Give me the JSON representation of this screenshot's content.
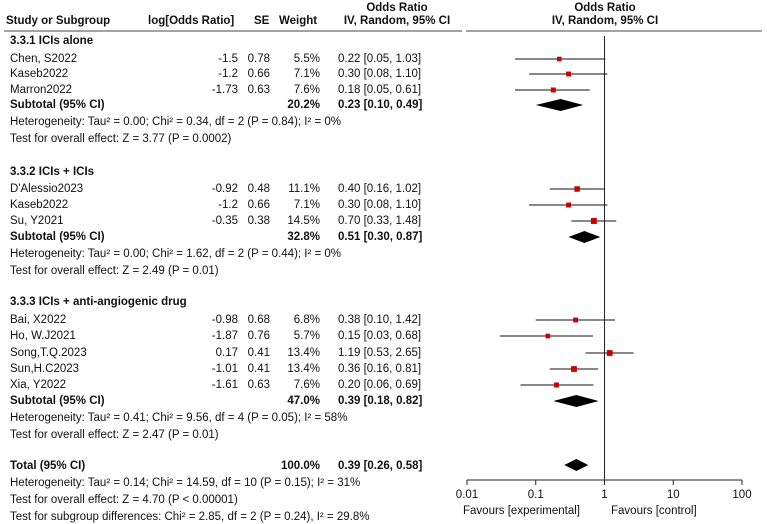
{
  "headers": {
    "study": "Study or Subgroup",
    "log_or": "log[Odds Ratio]",
    "se": "SE",
    "weight": "Weight",
    "or_title": "Odds Ratio",
    "or_method": "IV, Random, 95% CI",
    "plot_title": "Odds Ratio",
    "plot_method": "IV, Random, 95% CI"
  },
  "subgroups": [
    {
      "title": "3.3.1 ICIs alone",
      "studies": [
        {
          "name": "Chen, S2022",
          "log": "-1.5",
          "se": "0.78",
          "weight": "5.5%",
          "ci": "0.22 [0.05, 1.03]"
        },
        {
          "name": "Kaseb2022",
          "log": "-1.2",
          "se": "0.66",
          "weight": "7.1%",
          "ci": "0.30 [0.08, 1.10]"
        },
        {
          "name": "Marron2022",
          "log": "-1.73",
          "se": "0.63",
          "weight": "7.6%",
          "ci": "0.18 [0.05, 0.61]"
        }
      ],
      "subtotal_label": "Subtotal (95% CI)",
      "subtotal_weight": "20.2%",
      "subtotal_ci": "0.23 [0.10, 0.49]",
      "heterogeneity": "Heterogeneity: Tau² = 0.00; Chi² = 0.34, df = 2 (P = 0.84); I² = 0%",
      "overall": "Test for overall effect: Z = 3.77 (P = 0.0002)"
    },
    {
      "title": "3.3.2 ICIs + ICIs",
      "studies": [
        {
          "name": "D'Alessio2023",
          "log": "-0.92",
          "se": "0.48",
          "weight": "11.1%",
          "ci": "0.40 [0.16, 1.02]"
        },
        {
          "name": "Kaseb2022",
          "log": "-1.2",
          "se": "0.66",
          "weight": "7.1%",
          "ci": "0.30 [0.08, 1.10]"
        },
        {
          "name": "Su, Y2021",
          "log": "-0.35",
          "se": "0.38",
          "weight": "14.5%",
          "ci": "0.70 [0.33, 1.48]"
        }
      ],
      "subtotal_label": "Subtotal (95% CI)",
      "subtotal_weight": "32.8%",
      "subtotal_ci": "0.51 [0.30, 0.87]",
      "heterogeneity": "Heterogeneity: Tau² = 0.00; Chi² = 1.62, df = 2 (P = 0.44); I² = 0%",
      "overall": "Test for overall effect: Z = 2.49 (P = 0.01)"
    },
    {
      "title": "3.3.3 ICIs + anti-angiogenic drug",
      "studies": [
        {
          "name": "Bai, X2022",
          "log": "-0.98",
          "se": "0.68",
          "weight": "6.8%",
          "ci": "0.38 [0.10, 1.42]"
        },
        {
          "name": "Ho, W.J2021",
          "log": "-1.87",
          "se": "0.76",
          "weight": "5.7%",
          "ci": "0.15 [0.03, 0.68]"
        },
        {
          "name": "Song,T.Q.2023",
          "log": "0.17",
          "se": "0.41",
          "weight": "13.4%",
          "ci": "1.19 [0.53, 2.65]"
        },
        {
          "name": "Sun,H.C2023",
          "log": "-1.01",
          "se": "0.41",
          "weight": "13.4%",
          "ci": "0.36 [0.16, 0.81]"
        },
        {
          "name": "Xia, Y2022",
          "log": "-1.61",
          "se": "0.63",
          "weight": "7.6%",
          "ci": "0.20 [0.06, 0.69]"
        }
      ],
      "subtotal_label": "Subtotal (95% CI)",
      "subtotal_weight": "47.0%",
      "subtotal_ci": "0.39 [0.18, 0.82]",
      "heterogeneity": "Heterogeneity: Tau² = 0.41; Chi² = 9.56, df = 4 (P = 0.05); I² = 58%",
      "overall": "Test for overall effect: Z = 2.47 (P = 0.01)"
    }
  ],
  "total": {
    "label": "Total (95% CI)",
    "weight": "100.0%",
    "ci": "0.39 [0.26, 0.58]",
    "heterogeneity": "Heterogeneity: Tau² = 0.14; Chi² = 14.59, df = 10 (P = 0.15); I² = 31%",
    "overall": "Test for overall effect: Z = 4.70 (P < 0.00001)",
    "subgroup_diff": "Test for subgroup differences: Chi² = 2.85, df = 2 (P = 0.24), I² = 29.8%"
  },
  "chart_data": {
    "type": "forest",
    "title": "Odds Ratio",
    "subtitle": "IV, Random, 95% CI",
    "x_scale": "log",
    "xlim": [
      0.01,
      100
    ],
    "ticks": [
      0.01,
      0.1,
      1,
      10,
      100
    ],
    "tick_labels": [
      "0.01",
      "0.1",
      "1",
      "10",
      "100"
    ],
    "xlabel_left": "Favours [experimental]",
    "xlabel_right": "Favours [control]",
    "null_line": 1,
    "studies": [
      {
        "name": "Chen, S2022",
        "or": 0.22,
        "lo": 0.05,
        "hi": 1.03,
        "weight": 5.5
      },
      {
        "name": "Kaseb2022",
        "or": 0.3,
        "lo": 0.08,
        "hi": 1.1,
        "weight": 7.1
      },
      {
        "name": "Marron2022",
        "or": 0.18,
        "lo": 0.05,
        "hi": 0.61,
        "weight": 7.6
      },
      {
        "name": "D'Alessio2023",
        "or": 0.4,
        "lo": 0.16,
        "hi": 1.02,
        "weight": 11.1
      },
      {
        "name": "Kaseb2022",
        "or": 0.3,
        "lo": 0.08,
        "hi": 1.1,
        "weight": 7.1
      },
      {
        "name": "Su, Y2021",
        "or": 0.7,
        "lo": 0.33,
        "hi": 1.48,
        "weight": 14.5
      },
      {
        "name": "Bai, X2022",
        "or": 0.38,
        "lo": 0.1,
        "hi": 1.42,
        "weight": 6.8
      },
      {
        "name": "Ho, W.J2021",
        "or": 0.15,
        "lo": 0.03,
        "hi": 0.68,
        "weight": 5.7
      },
      {
        "name": "Song,T.Q.2023",
        "or": 1.19,
        "lo": 0.53,
        "hi": 2.65,
        "weight": 13.4
      },
      {
        "name": "Sun,H.C2023",
        "or": 0.36,
        "lo": 0.16,
        "hi": 0.81,
        "weight": 13.4
      },
      {
        "name": "Xia, Y2022",
        "or": 0.2,
        "lo": 0.06,
        "hi": 0.69,
        "weight": 7.6
      }
    ],
    "diamonds": [
      {
        "name": "Subtotal 3.3.1",
        "or": 0.23,
        "lo": 0.1,
        "hi": 0.49
      },
      {
        "name": "Subtotal 3.3.2",
        "or": 0.51,
        "lo": 0.3,
        "hi": 0.87
      },
      {
        "name": "Subtotal 3.3.3",
        "or": 0.39,
        "lo": 0.18,
        "hi": 0.82
      },
      {
        "name": "Total",
        "or": 0.39,
        "lo": 0.26,
        "hi": 0.58
      }
    ],
    "marker_color": "#cc0000",
    "diamond_color": "#000000"
  }
}
